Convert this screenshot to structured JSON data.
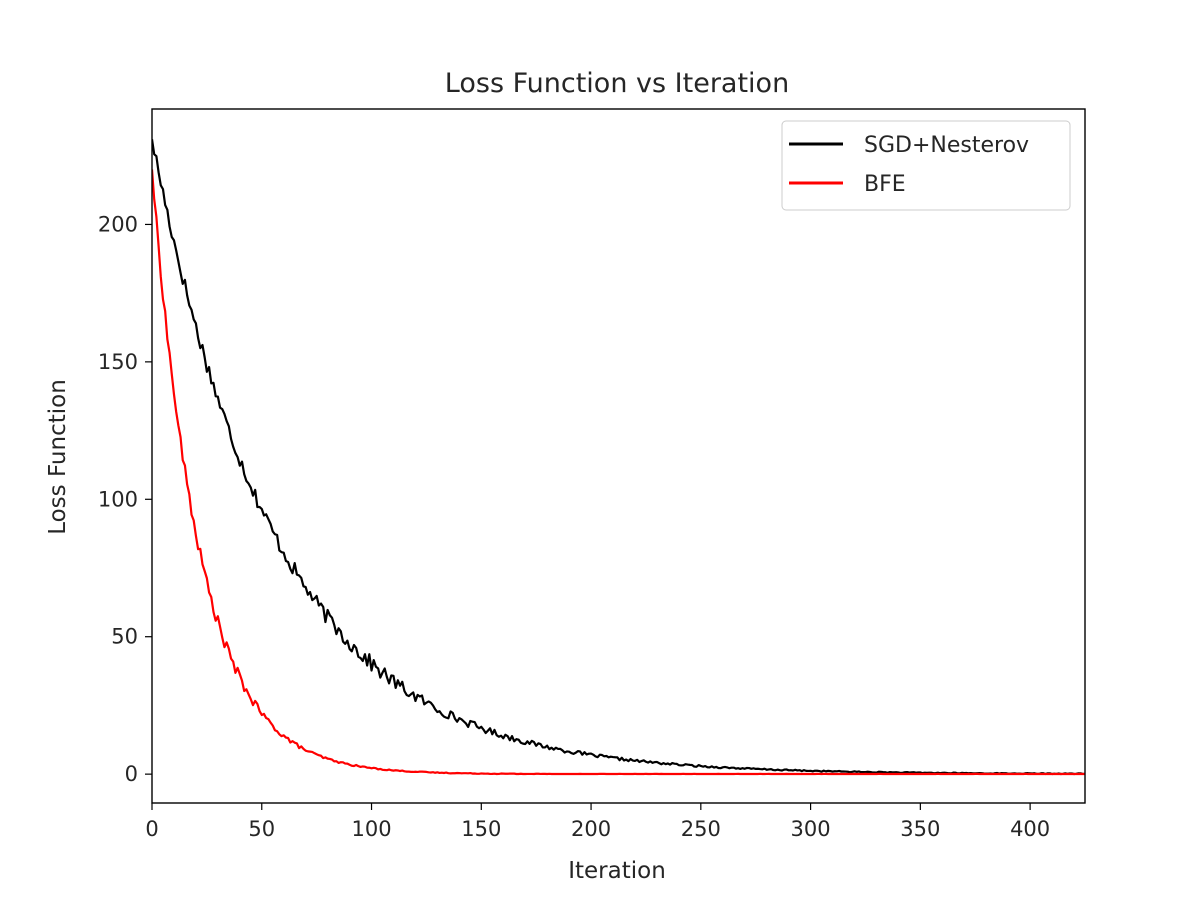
{
  "chart_data": {
    "type": "line",
    "title": "Loss Function vs Iteration",
    "xlabel": "Iteration",
    "ylabel": "Loss Function",
    "xlim": [
      0,
      425
    ],
    "ylim": [
      -10.5,
      242
    ],
    "xticks": [
      0,
      50,
      100,
      150,
      200,
      250,
      300,
      350,
      400
    ],
    "yticks": [
      0,
      50,
      100,
      150,
      200
    ],
    "grid": false,
    "legend_position": "top-right",
    "series": [
      {
        "name": "SGD+Nesterov",
        "color": "#000000",
        "start_value": 231,
        "decay_rate": 0.0175,
        "noise_amplitude": 2.8,
        "values_sample": {
          "x": [
            0,
            25,
            50,
            75,
            100,
            150,
            200,
            250,
            300,
            350,
            425
          ],
          "y": [
            231,
            150,
            96,
            55,
            36,
            15,
            7,
            3,
            1.2,
            0.5,
            0.2
          ]
        }
      },
      {
        "name": "BFE",
        "color": "#ff0000",
        "start_value": 220,
        "decay_rate": 0.046,
        "noise_amplitude": 2.2,
        "values_sample": {
          "x": [
            0,
            10,
            20,
            35,
            50,
            75,
            100,
            150,
            200,
            425
          ],
          "y": [
            220,
            130,
            90,
            48,
            24,
            9,
            3,
            0.5,
            0.2,
            0.1
          ]
        }
      }
    ]
  }
}
